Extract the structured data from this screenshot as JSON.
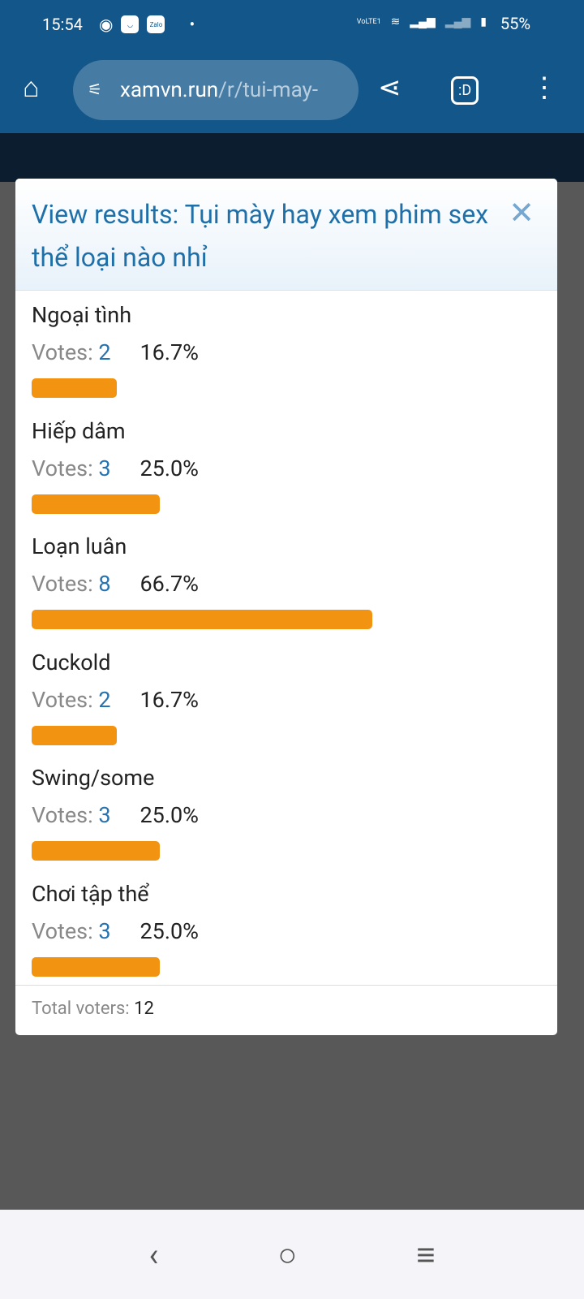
{
  "status_bar": {
    "time": "15:54",
    "battery": "55%",
    "network": "VoLTE1"
  },
  "browser": {
    "url_domain": "xamvn.run",
    "url_path": "/r/tui-may-",
    "tab_label": ":D"
  },
  "poll": {
    "title": "View results: Tụi mày hay xem phim sex thể loại nào nhỉ",
    "votes_label": "Votes:",
    "options": [
      {
        "label": "Ngoại tình",
        "votes": "2",
        "percent": "16.7%",
        "fraction": 0.167
      },
      {
        "label": "Hiếp dâm",
        "votes": "3",
        "percent": "25.0%",
        "fraction": 0.25
      },
      {
        "label": "Loạn luân",
        "votes": "8",
        "percent": "66.7%",
        "fraction": 0.667
      },
      {
        "label": "Cuckold",
        "votes": "2",
        "percent": "16.7%",
        "fraction": 0.167
      },
      {
        "label": "Swing/some",
        "votes": "3",
        "percent": "25.0%",
        "fraction": 0.25
      },
      {
        "label": "Chơi tập thể",
        "votes": "3",
        "percent": "25.0%",
        "fraction": 0.25
      }
    ],
    "total_label": "Total voters:",
    "total": "12",
    "bar_color": "#f29412"
  }
}
